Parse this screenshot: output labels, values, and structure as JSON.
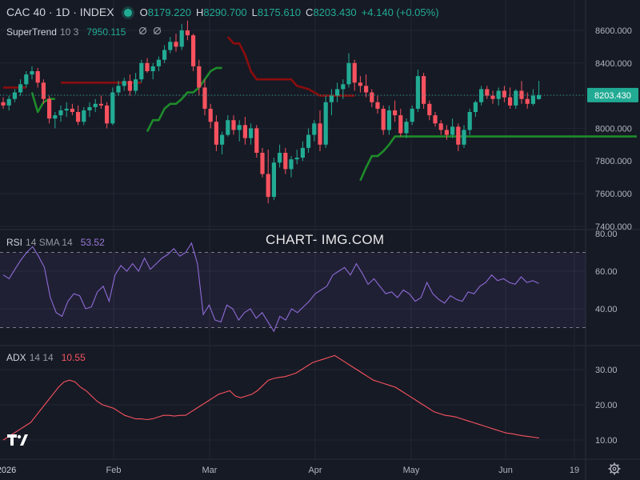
{
  "header": {
    "symbol": "CAC 40 · 1D · INDEX",
    "open_label": "O",
    "open": "8179.220",
    "high_label": "H",
    "high": "8290.700",
    "low_label": "L",
    "low": "8175.610",
    "close_label": "C",
    "close": "8203.430",
    "change": "+4.140 (+0.05%)"
  },
  "supertrend": {
    "name": "SuperTrend",
    "params": "10 3",
    "value": "7950.115",
    "color": "#22ab94"
  },
  "rsi": {
    "name": "RSI",
    "params": "14 SMA 14",
    "value": "53.52",
    "color": "#7e57c2"
  },
  "adx": {
    "name": "ADX",
    "params": "14 14",
    "value": "10.55",
    "color": "#f7525f"
  },
  "watermark": "CHART- IMG.COM",
  "icons": {
    "logo": "tradingview-logo-icon",
    "settings": "gear-icon",
    "eye": "eye-hidden-icon",
    "status": "market-status-dot"
  },
  "colors": {
    "up": "#22ab94",
    "down": "#f7525f",
    "supertrend_up": "#1e8c2a",
    "supertrend_down": "#8b0d0d",
    "background": "#161a25"
  },
  "chart_data": [
    {
      "type": "candlestick",
      "title": "CAC 40 · 1D · INDEX",
      "y_ticks": [
        "8600.000",
        "8400.000",
        "8200.000",
        "8000.000",
        "7800.000",
        "7600.000",
        "7400.000"
      ],
      "ylim": [
        7400,
        8650
      ],
      "x_ticks": [
        "2026",
        "Feb",
        "Mar",
        "Apr",
        "May",
        "Jun",
        "19"
      ],
      "last_price_label": "8203.430",
      "candles": [
        [
          8160,
          8190,
          8120,
          8140
        ],
        [
          8140,
          8200,
          8110,
          8180
        ],
        [
          8180,
          8240,
          8160,
          8220
        ],
        [
          8220,
          8300,
          8200,
          8270
        ],
        [
          8270,
          8350,
          8250,
          8330
        ],
        [
          8330,
          8380,
          8300,
          8350
        ],
        [
          8350,
          8370,
          8250,
          8280
        ],
        [
          8280,
          8300,
          8150,
          8180
        ],
        [
          8180,
          8200,
          8030,
          8060
        ],
        [
          8060,
          8100,
          8000,
          8080
        ],
        [
          8080,
          8140,
          8040,
          8110
        ],
        [
          8110,
          8160,
          8070,
          8120
        ],
        [
          8120,
          8150,
          8080,
          8100
        ],
        [
          8100,
          8140,
          8020,
          8040
        ],
        [
          8040,
          8130,
          8020,
          8110
        ],
        [
          8110,
          8160,
          8070,
          8130
        ],
        [
          8130,
          8180,
          8100,
          8150
        ],
        [
          8150,
          8200,
          8120,
          8140
        ],
        [
          8140,
          8160,
          8000,
          8030
        ],
        [
          8030,
          8250,
          8020,
          8220
        ],
        [
          8220,
          8290,
          8200,
          8260
        ],
        [
          8260,
          8310,
          8230,
          8290
        ],
        [
          8290,
          8330,
          8200,
          8230
        ],
        [
          8230,
          8340,
          8210,
          8300
        ],
        [
          8300,
          8420,
          8280,
          8400
        ],
        [
          8400,
          8430,
          8340,
          8350
        ],
        [
          8350,
          8400,
          8300,
          8380
        ],
        [
          8380,
          8440,
          8350,
          8420
        ],
        [
          8420,
          8510,
          8400,
          8480
        ],
        [
          8480,
          8560,
          8460,
          8530
        ],
        [
          8530,
          8580,
          8470,
          8500
        ],
        [
          8500,
          8640,
          8480,
          8600
        ],
        [
          8600,
          8660,
          8540,
          8570
        ],
        [
          8570,
          8580,
          8350,
          8380
        ],
        [
          8380,
          8420,
          8200,
          8250
        ],
        [
          8250,
          8300,
          8080,
          8120
        ],
        [
          8120,
          8150,
          8000,
          8040
        ],
        [
          8040,
          8080,
          7860,
          7900
        ],
        [
          7900,
          7980,
          7840,
          7960
        ],
        [
          7960,
          8080,
          7950,
          8050
        ],
        [
          8050,
          8080,
          7960,
          7990
        ],
        [
          7990,
          8050,
          7920,
          8020
        ],
        [
          8020,
          8070,
          7900,
          7940
        ],
        [
          7940,
          8030,
          7900,
          8000
        ],
        [
          8000,
          8020,
          7820,
          7850
        ],
        [
          7850,
          7880,
          7700,
          7720
        ],
        [
          7720,
          7870,
          7540,
          7580
        ],
        [
          7580,
          7820,
          7560,
          7790
        ],
        [
          7790,
          7900,
          7760,
          7850
        ],
        [
          7850,
          7880,
          7720,
          7750
        ],
        [
          7750,
          7830,
          7700,
          7810
        ],
        [
          7810,
          7870,
          7780,
          7820
        ],
        [
          7820,
          7920,
          7800,
          7880
        ],
        [
          7880,
          8000,
          7850,
          7960
        ],
        [
          7960,
          8050,
          7920,
          8030
        ],
        [
          8030,
          8110,
          7860,
          7900
        ],
        [
          7900,
          8200,
          7880,
          8160
        ],
        [
          8160,
          8240,
          8080,
          8200
        ],
        [
          8200,
          8280,
          8160,
          8240
        ],
        [
          8240,
          8300,
          8180,
          8270
        ],
        [
          8270,
          8460,
          8250,
          8400
        ],
        [
          8400,
          8420,
          8230,
          8280
        ],
        [
          8280,
          8320,
          8220,
          8260
        ],
        [
          8260,
          8330,
          8190,
          8220
        ],
        [
          8220,
          8240,
          8130,
          8160
        ],
        [
          8160,
          8200,
          8090,
          8120
        ],
        [
          8120,
          8140,
          7960,
          7990
        ],
        [
          7990,
          8140,
          7960,
          8110
        ],
        [
          8110,
          8170,
          8040,
          8080
        ],
        [
          8080,
          8120,
          7950,
          7970
        ],
        [
          7970,
          8060,
          7940,
          8040
        ],
        [
          8040,
          8140,
          8020,
          8120
        ],
        [
          8120,
          8360,
          8100,
          8320
        ],
        [
          8320,
          8340,
          8120,
          8150
        ],
        [
          8150,
          8170,
          8050,
          8080
        ],
        [
          8080,
          8100,
          8010,
          8030
        ],
        [
          8030,
          8050,
          7960,
          7990
        ],
        [
          7990,
          8020,
          7930,
          7960
        ],
        [
          7960,
          8060,
          7940,
          8010
        ],
        [
          8010,
          8030,
          7860,
          7900
        ],
        [
          7900,
          8020,
          7880,
          7990
        ],
        [
          7990,
          8120,
          7960,
          8100
        ],
        [
          8100,
          8170,
          8070,
          8160
        ],
        [
          8160,
          8260,
          8140,
          8240
        ],
        [
          8240,
          8260,
          8180,
          8200
        ],
        [
          8200,
          8230,
          8150,
          8180
        ],
        [
          8180,
          8250,
          8140,
          8230
        ],
        [
          8230,
          8260,
          8160,
          8190
        ],
        [
          8190,
          8250,
          8120,
          8140
        ],
        [
          8140,
          8240,
          8120,
          8230
        ],
        [
          8230,
          8290,
          8150,
          8180
        ],
        [
          8180,
          8220,
          8120,
          8150
        ],
        [
          8150,
          8240,
          8140,
          8200
        ],
        [
          8179.22,
          8290.7,
          8175.61,
          8203.43
        ]
      ],
      "supertrend": [
        {
          "dir": "down",
          "values": [
            8250,
            8250,
            8250,
            8250,
            8250
          ]
        },
        {
          "dir": "up",
          "values": [
            8220,
            8100,
            8160,
            8180,
            8180
          ]
        },
        {
          "dir": "down",
          "values": [
            8280,
            8280,
            8280,
            8280,
            8280,
            8280,
            8280,
            8280,
            8280,
            8280,
            8280,
            8280,
            8280,
            8280,
            8280
          ]
        },
        {
          "dir": "up",
          "values": [
            7980,
            8050,
            8050,
            8120,
            8150,
            8150,
            8180,
            8220,
            8220,
            8250,
            8300,
            8350,
            8370,
            8370
          ]
        },
        {
          "dir": "down",
          "values": [
            8560,
            8520,
            8520,
            8450,
            8350,
            8300,
            8300,
            8300,
            8300,
            8300,
            8300,
            8300,
            8260,
            8250,
            8240,
            8220,
            8200,
            8200,
            8200,
            8200,
            8200,
            8200,
            8200
          ]
        },
        {
          "dir": "up",
          "values": [
            7680,
            7760,
            7830,
            7830,
            7860,
            7900,
            7950,
            7950,
            7950,
            7950,
            7950,
            7950,
            7950,
            7950,
            7950,
            7950,
            7950,
            7950,
            7950,
            7950,
            7950,
            7950,
            7950,
            7950,
            7950,
            7950,
            7950,
            7950,
            7950,
            7950,
            7950,
            7950,
            7950,
            7950,
            7950,
            7950,
            7950,
            7950,
            7950,
            7950,
            7950,
            7950,
            7950,
            7950,
            7950,
            7950,
            7950,
            7950,
            7950
          ]
        }
      ]
    },
    {
      "type": "line",
      "title": "RSI 14 SMA 14",
      "y_ticks": [
        "80.00",
        "60.00",
        "40.00"
      ],
      "ylim": [
        22,
        80
      ],
      "bands": [
        70,
        30
      ],
      "last_value": "53.52",
      "values": [
        58,
        56,
        61,
        66,
        70,
        73,
        68,
        62,
        46,
        38,
        36,
        44,
        48,
        47,
        40,
        41,
        49,
        52,
        44,
        58,
        63,
        60,
        64,
        60,
        67,
        61,
        64,
        67,
        69,
        72,
        68,
        70,
        75,
        64,
        37,
        42,
        34,
        33,
        42,
        40,
        34,
        38,
        40,
        35,
        38,
        33,
        28,
        36,
        34,
        40,
        38,
        41,
        44,
        48,
        50,
        52,
        58,
        60,
        62,
        58,
        64,
        59,
        53,
        56,
        52,
        48,
        49,
        46,
        50,
        48,
        44,
        46,
        54,
        48,
        45,
        43,
        47,
        45,
        44,
        49,
        48,
        52,
        54,
        58,
        55,
        56,
        54,
        53,
        57,
        54,
        55,
        53.52
      ]
    },
    {
      "type": "line",
      "title": "ADX 14 14",
      "y_ticks": [
        "30.00",
        "20.00",
        "10.00"
      ],
      "ylim": [
        7,
        36
      ],
      "last_value": "10.55",
      "values": [
        10,
        11,
        12,
        13,
        14,
        15,
        17,
        19,
        21,
        23,
        25,
        26.5,
        27,
        26.5,
        25,
        24,
        22.5,
        21,
        20,
        19.5,
        19,
        18,
        17,
        16.5,
        16,
        16,
        15.8,
        16,
        16.5,
        17,
        17,
        16.8,
        17,
        17,
        18,
        19,
        20,
        21,
        22,
        23,
        23.5,
        24,
        22.5,
        22,
        22.5,
        23,
        24,
        25.5,
        27,
        27.5,
        27.8,
        28,
        28.5,
        29,
        30,
        31,
        32,
        32.5,
        33,
        33.5,
        34,
        33,
        32,
        31,
        30,
        29,
        28,
        27,
        26.5,
        26,
        25.5,
        25,
        24,
        23,
        22,
        21,
        20,
        19,
        18,
        17.5,
        17,
        16.8,
        16.5,
        16,
        15.5,
        15,
        14.5,
        14,
        13.5,
        13,
        12.5,
        12,
        11.8,
        11.5,
        11.2,
        11,
        10.8,
        10.55
      ]
    }
  ]
}
